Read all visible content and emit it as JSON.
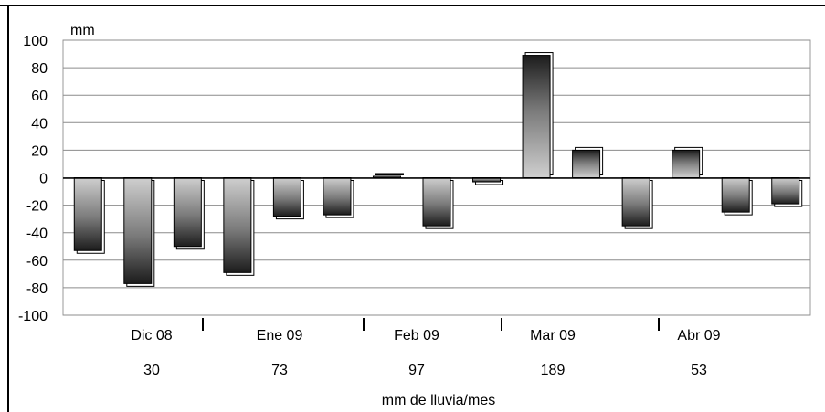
{
  "chart_data": {
    "type": "bar",
    "ylabel": "mm",
    "xlabel": "mm de lluvia/mes",
    "ylim": [
      -100,
      100
    ],
    "yticks": [
      100,
      80,
      60,
      40,
      20,
      0,
      -20,
      -40,
      -60,
      -80,
      -100
    ],
    "grid": true,
    "values": [
      -53,
      -77,
      -50,
      -69,
      -28,
      -27,
      1,
      -35,
      -3,
      89,
      20,
      -35,
      20,
      -25,
      -19
    ],
    "groups": [
      {
        "label": "Dic 08",
        "rain": "30"
      },
      {
        "label": "Ene 09",
        "rain": "73"
      },
      {
        "label": "Feb 09",
        "rain": "97"
      },
      {
        "label": "Mar 09",
        "rain": "189"
      },
      {
        "label": "Abr 09",
        "rain": "53"
      }
    ]
  }
}
